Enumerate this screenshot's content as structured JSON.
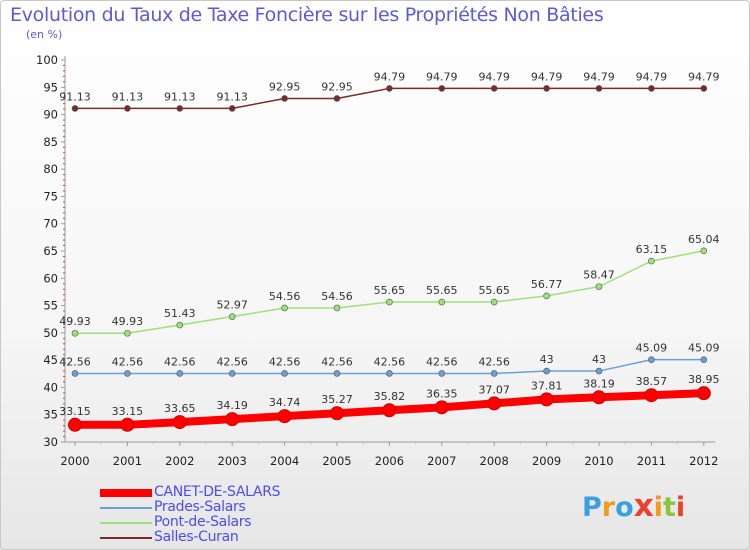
{
  "title": "Evolution du Taux de Taxe Foncière sur les Propriétés Non Bâties",
  "unit": "(en %)",
  "logo": "Proxiti",
  "chart_data": {
    "type": "line",
    "title": "Evolution du Taux de Taxe Foncière sur les Propriétés Non Bâties",
    "ylabel": "(en %)",
    "xlabel": "",
    "x": [
      "2000",
      "2001",
      "2002",
      "2003",
      "2004",
      "2005",
      "2006",
      "2007",
      "2008",
      "2009",
      "2010",
      "2011",
      "2012"
    ],
    "ylim": [
      30,
      100
    ],
    "yticks": [
      30,
      35,
      40,
      45,
      50,
      55,
      60,
      65,
      70,
      75,
      80,
      85,
      90,
      95,
      100
    ],
    "grid": false,
    "legend_position": "bottom-left",
    "series": [
      {
        "name": "CANET-DE-SALARS",
        "color": "#ff0000",
        "values": [
          33.15,
          33.15,
          33.65,
          34.19,
          34.74,
          35.27,
          35.82,
          36.35,
          37.07,
          37.81,
          38.19,
          38.57,
          38.95
        ],
        "labels": [
          "33.15",
          "33.15",
          "33.65",
          "34.19",
          "34.74",
          "35.27",
          "35.82",
          "36.35",
          "37.07",
          "37.81",
          "38.19",
          "38.57",
          "38.95"
        ]
      },
      {
        "name": "Prades-Salars",
        "color": "#6a9fd4",
        "values": [
          42.56,
          42.56,
          42.56,
          42.56,
          42.56,
          42.56,
          42.56,
          42.56,
          42.56,
          43,
          43,
          45.09,
          45.09
        ],
        "labels": [
          "42.56",
          "42.56",
          "42.56",
          "42.56",
          "42.56",
          "42.56",
          "42.56",
          "42.56",
          "42.56",
          "43",
          "43",
          "45.09",
          "45.09"
        ]
      },
      {
        "name": "Pont-de-Salars",
        "color": "#9ee07a",
        "values": [
          49.93,
          49.93,
          51.43,
          52.97,
          54.56,
          54.56,
          55.65,
          55.65,
          55.65,
          56.77,
          58.47,
          63.15,
          65.04
        ],
        "labels": [
          "49.93",
          "49.93",
          "51.43",
          "52.97",
          "54.56",
          "54.56",
          "55.65",
          "55.65",
          "55.65",
          "56.77",
          "58.47",
          "63.15",
          "65.04"
        ]
      },
      {
        "name": "Salles-Curan",
        "color": "#7a2a2a",
        "values": [
          91.13,
          91.13,
          91.13,
          91.13,
          92.95,
          92.95,
          94.79,
          94.79,
          94.79,
          94.79,
          94.79,
          94.79,
          94.79
        ],
        "labels": [
          "91.13",
          "91.13",
          "91.13",
          "91.13",
          "92.95",
          "92.95",
          "94.79",
          "94.79",
          "94.79",
          "94.79",
          "94.79",
          "94.79",
          "94.79"
        ]
      }
    ]
  }
}
